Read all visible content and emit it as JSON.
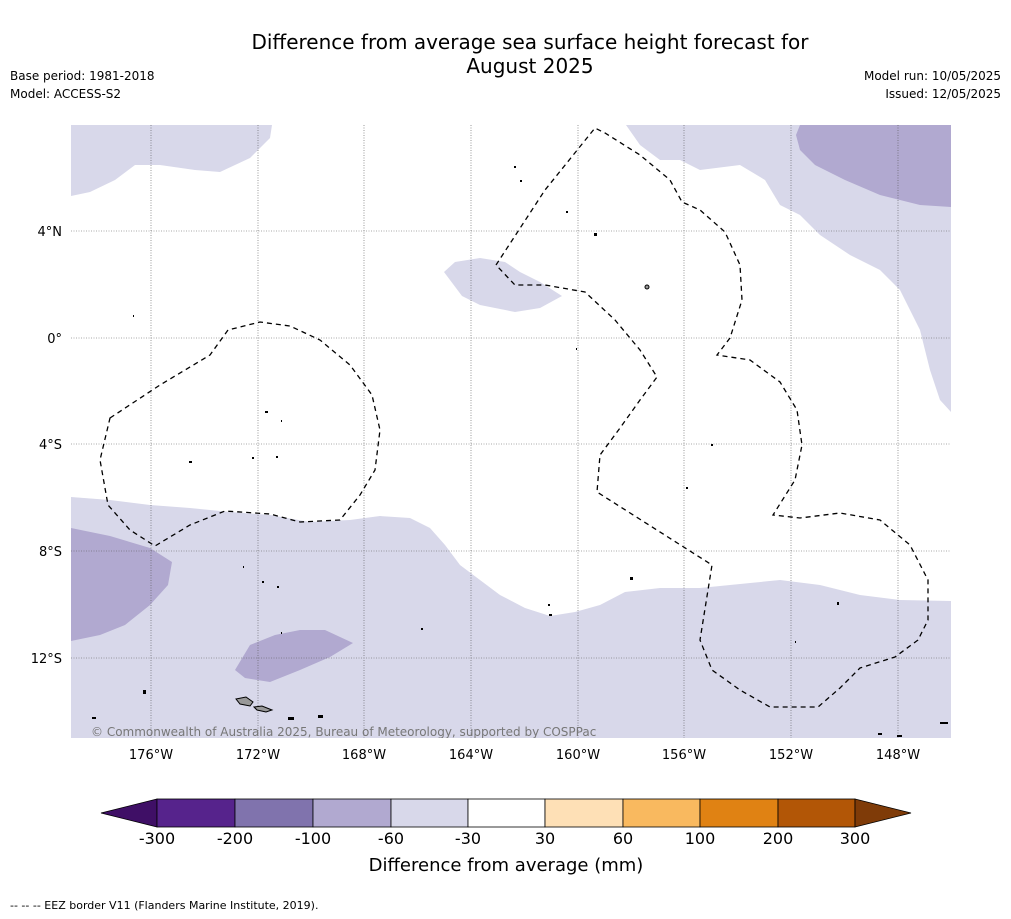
{
  "title_line1": "Difference from average sea surface height forecast for",
  "title_line2": "August 2025",
  "base_period": "Base period: 1981-2018",
  "model": "Model: ACCESS-S2",
  "model_run": "Model run: 10/05/2025",
  "issued": "Issued: 12/05/2025",
  "credit": "© Commonwealth of Australia 2025, Bureau of Meteorology, supported by COSPPac",
  "footer_note": "--  --  -- EEZ border V11 (Flanders Marine Institute, 2019).",
  "axes": {
    "lat_labels": [
      "4°N",
      "0°",
      "4°S",
      "8°S",
      "12°S"
    ],
    "lon_labels": [
      "176°W",
      "172°W",
      "168°W",
      "164°W",
      "160°W",
      "156°W",
      "152°W",
      "148°W"
    ]
  },
  "colorbar": {
    "label": "Difference from average (mm)",
    "ticks": [
      "-300",
      "-200",
      "-100",
      "-60",
      "-30",
      "30",
      "60",
      "100",
      "200",
      "300"
    ],
    "colors": [
      "#3f0f66",
      "#56238c",
      "#8073ad",
      "#b1a9d0",
      "#d8d8ea",
      "#ffffff",
      "#fee0b6",
      "#f9b95f",
      "#e08213",
      "#b25606",
      "#7f3b08"
    ]
  }
}
